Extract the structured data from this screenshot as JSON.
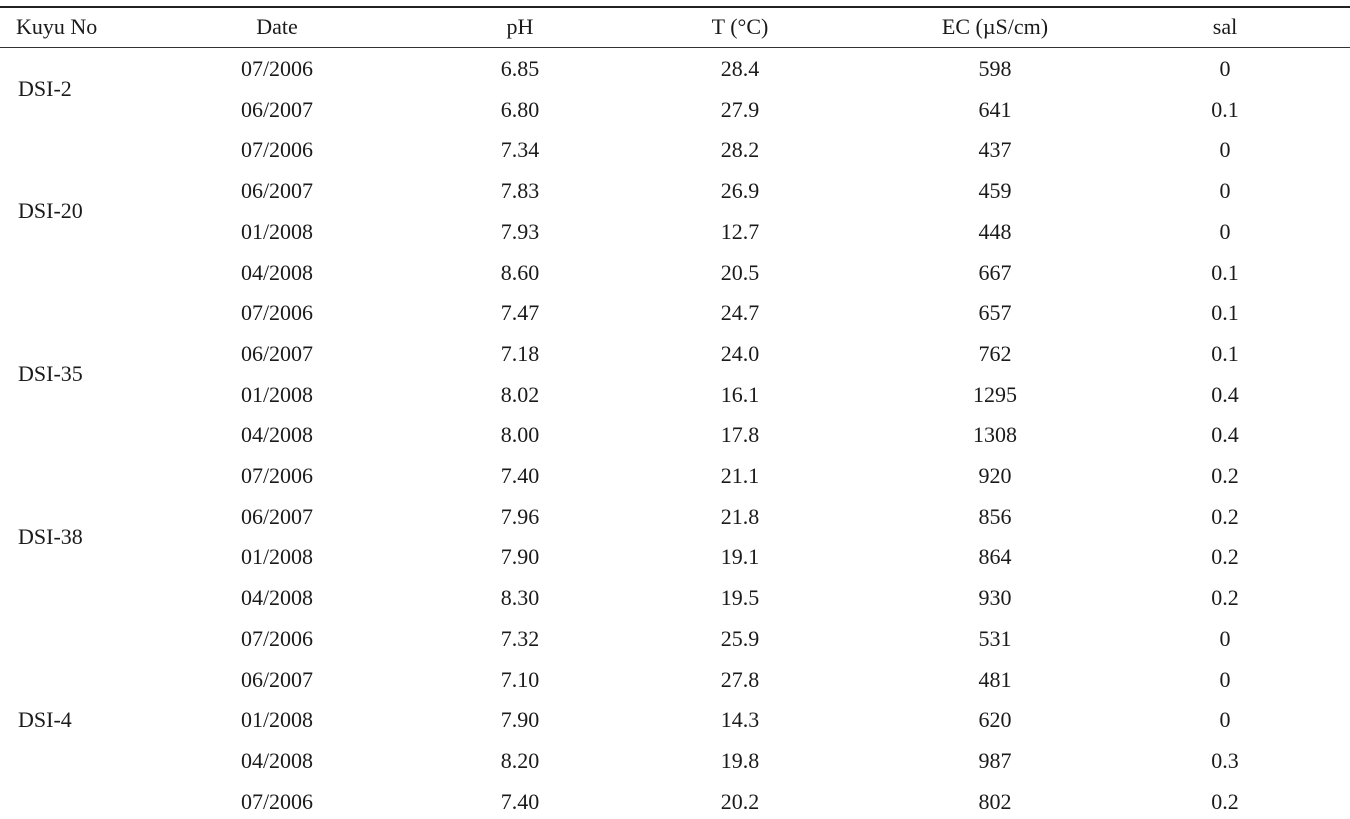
{
  "columns": [
    "Kuyu No",
    "Date",
    "pH",
    "T (°C)",
    "EC (µS/cm)",
    "sal"
  ],
  "wells": [
    "DSI-2",
    "DSI-20",
    "DSI-35",
    "DSI-38",
    "DSI-4"
  ],
  "well_row_spans": [
    2,
    4,
    4,
    4,
    5
  ],
  "rows": [
    [
      "07/2006",
      "6.85",
      "28.4",
      "598",
      "0"
    ],
    [
      "06/2007",
      "6.80",
      "27.9",
      "641",
      "0.1"
    ],
    [
      "07/2006",
      "7.34",
      "28.2",
      "437",
      "0"
    ],
    [
      "06/2007",
      "7.83",
      "26.9",
      "459",
      "0"
    ],
    [
      "01/2008",
      "7.93",
      "12.7",
      "448",
      "0"
    ],
    [
      "04/2008",
      "8.60",
      "20.5",
      "667",
      "0.1"
    ],
    [
      "07/2006",
      "7.47",
      "24.7",
      "657",
      "0.1"
    ],
    [
      "06/2007",
      "7.18",
      "24.0",
      "762",
      "0.1"
    ],
    [
      "01/2008",
      "8.02",
      "16.1",
      "1295",
      "0.4"
    ],
    [
      "04/2008",
      "8.00",
      "17.8",
      "1308",
      "0.4"
    ],
    [
      "07/2006",
      "7.40",
      "21.1",
      "920",
      "0.2"
    ],
    [
      "06/2007",
      "7.96",
      "21.8",
      "856",
      "0.2"
    ],
    [
      "01/2008",
      "7.90",
      "19.1",
      "864",
      "0.2"
    ],
    [
      "04/2008",
      "8.30",
      "19.5",
      "930",
      "0.2"
    ],
    [
      "07/2006",
      "7.32",
      "25.9",
      "531",
      "0"
    ],
    [
      "06/2007",
      "7.10",
      "27.8",
      "481",
      "0"
    ],
    [
      "01/2008",
      "7.90",
      "14.3",
      "620",
      "0"
    ],
    [
      "04/2008",
      "8.20",
      "19.8",
      "987",
      "0.3"
    ],
    [
      "07/2006",
      "7.40",
      "20.2",
      "802",
      "0.2"
    ]
  ]
}
